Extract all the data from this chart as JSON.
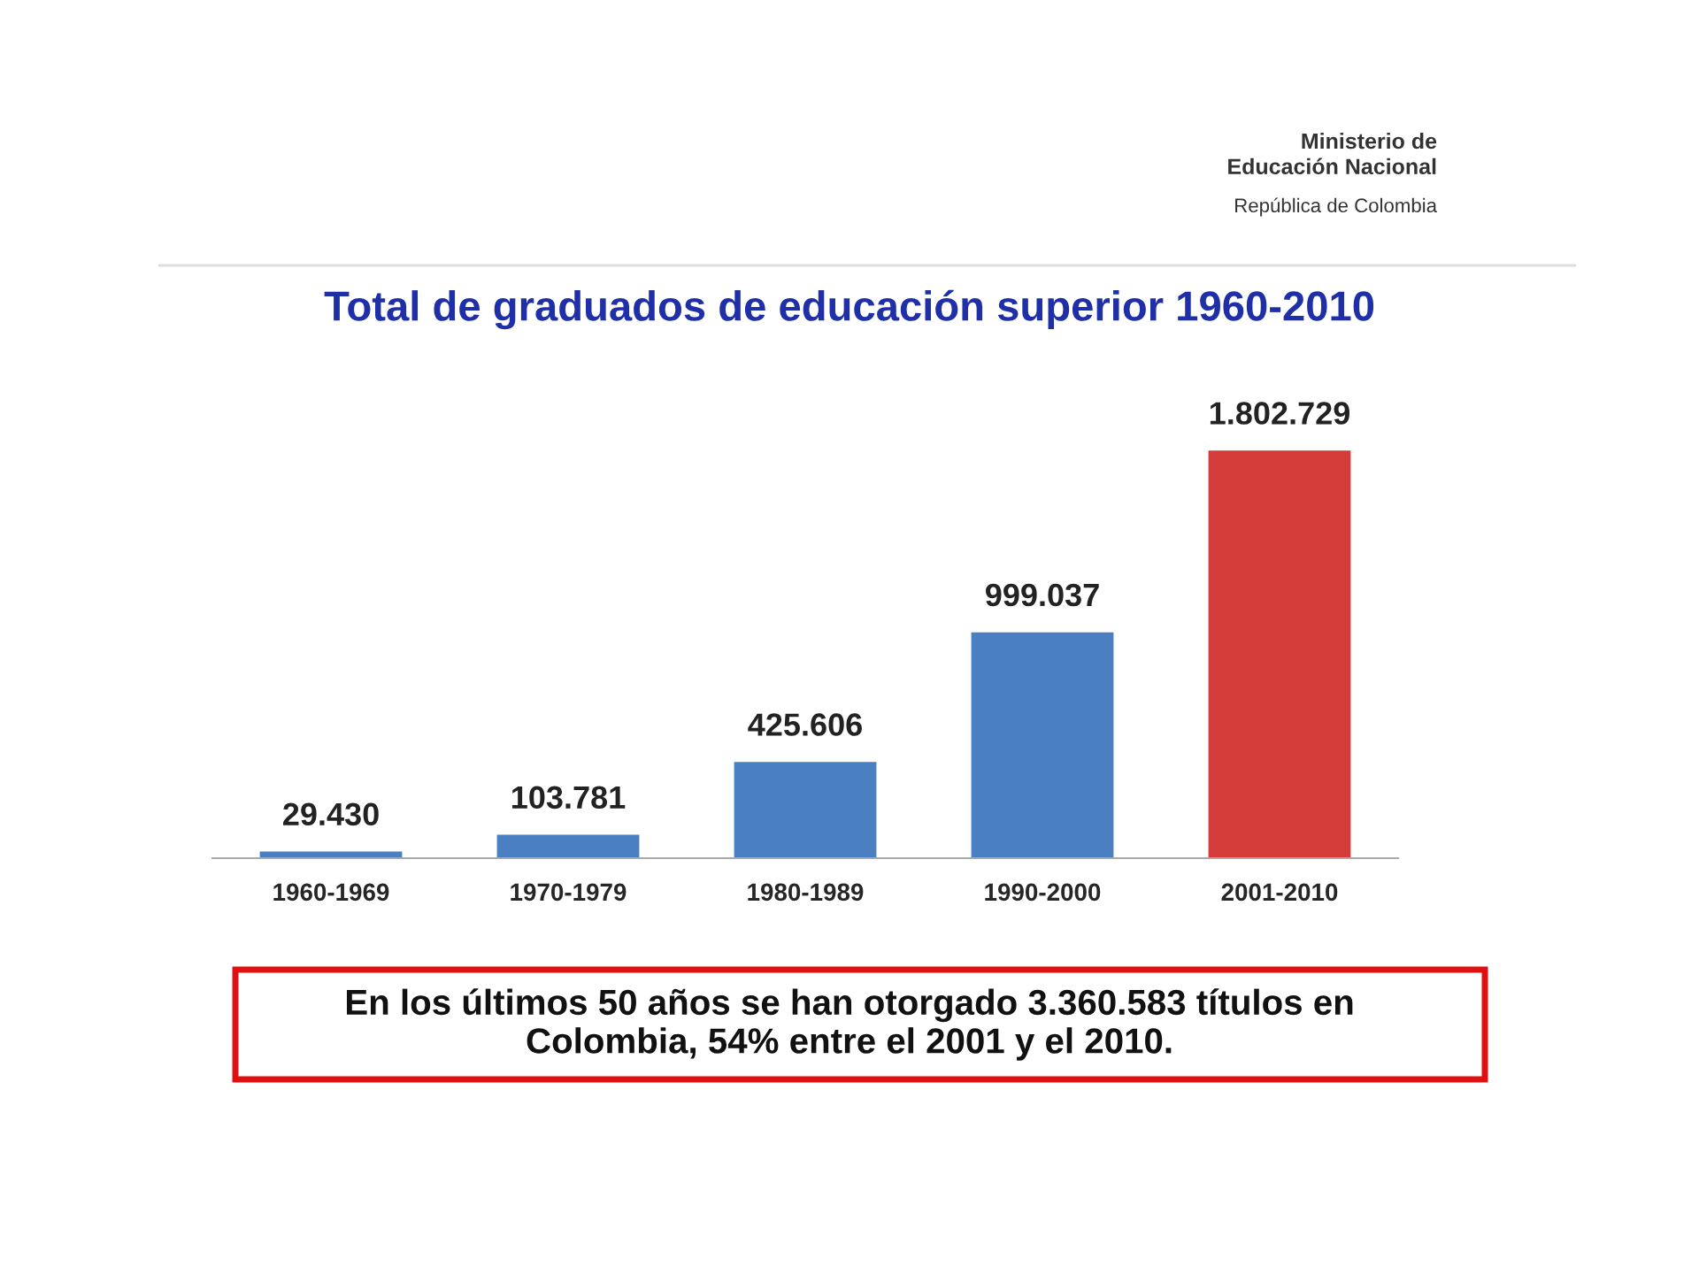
{
  "chart_data": {
    "type": "bar",
    "title": "Total de graduados de educación superior 1960-2010",
    "categories": [
      "1960-1969",
      "1970-1979",
      "1980-1989",
      "1990-2000",
      "2001-2010"
    ],
    "values": [
      29430,
      103781,
      425606,
      999037,
      1802729
    ],
    "value_labels": [
      "29.430",
      "103.781",
      "425.606",
      "999.037",
      "1.802.729"
    ],
    "colors": [
      "#4a7fc1",
      "#4a7fc1",
      "#4a7fc1",
      "#4a7fc1",
      "#d43c3a"
    ],
    "annotations": [
      "Ministerio de Educación Nacional",
      "República de Colombia",
      "En los últimos 50 años se han otorgado 3.360.583 títulos en Colombia, 54% entre el 2001 y el 2010."
    ],
    "grid": false,
    "legend": false
  }
}
